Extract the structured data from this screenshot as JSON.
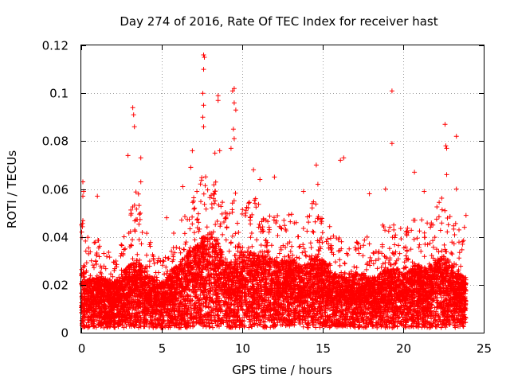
{
  "chart_data": {
    "type": "scatter",
    "title": "Day 274 of 2016, Rate Of TEC Index for receiver hast",
    "xlabel": "GPS time / hours",
    "ylabel": "ROTI / TECUs",
    "xlim": [
      0,
      25
    ],
    "ylim": [
      0,
      0.12
    ],
    "xticks": [
      0,
      5,
      10,
      15,
      20,
      25
    ],
    "xtick_labels": [
      "0",
      "5",
      "10",
      "15",
      "20",
      "25"
    ],
    "yticks": [
      0,
      0.02,
      0.04,
      0.06,
      0.08,
      0.1,
      0.12
    ],
    "ytick_labels": [
      "0",
      "0.02",
      "0.04",
      "0.06",
      "0.08",
      "0.1",
      "0.12"
    ],
    "grid": true,
    "marker": "+",
    "color": "#ff0000",
    "series": [
      {
        "name": "ROTI",
        "highlight_points": [
          {
            "x": 3.2,
            "y": 0.094
          },
          {
            "x": 3.25,
            "y": 0.091
          },
          {
            "x": 3.3,
            "y": 0.086
          },
          {
            "x": 2.9,
            "y": 0.074
          },
          {
            "x": 3.7,
            "y": 0.073
          },
          {
            "x": 3.7,
            "y": 0.063
          },
          {
            "x": 6.3,
            "y": 0.061
          },
          {
            "x": 7.6,
            "y": 0.116
          },
          {
            "x": 7.65,
            "y": 0.115
          },
          {
            "x": 7.6,
            "y": 0.11
          },
          {
            "x": 7.55,
            "y": 0.1
          },
          {
            "x": 7.6,
            "y": 0.095
          },
          {
            "x": 7.55,
            "y": 0.09
          },
          {
            "x": 7.6,
            "y": 0.086
          },
          {
            "x": 8.5,
            "y": 0.099
          },
          {
            "x": 8.5,
            "y": 0.097
          },
          {
            "x": 9.5,
            "y": 0.102
          },
          {
            "x": 9.4,
            "y": 0.101
          },
          {
            "x": 9.5,
            "y": 0.096
          },
          {
            "x": 9.6,
            "y": 0.093
          },
          {
            "x": 9.45,
            "y": 0.085
          },
          {
            "x": 9.5,
            "y": 0.081
          },
          {
            "x": 8.3,
            "y": 0.075
          },
          {
            "x": 8.6,
            "y": 0.076
          },
          {
            "x": 6.9,
            "y": 0.076
          },
          {
            "x": 6.8,
            "y": 0.069
          },
          {
            "x": 9.3,
            "y": 0.077
          },
          {
            "x": 14.6,
            "y": 0.07
          },
          {
            "x": 14.7,
            "y": 0.062
          },
          {
            "x": 16.1,
            "y": 0.072
          },
          {
            "x": 16.3,
            "y": 0.073
          },
          {
            "x": 19.3,
            "y": 0.101
          },
          {
            "x": 19.3,
            "y": 0.079
          },
          {
            "x": 22.6,
            "y": 0.087
          },
          {
            "x": 22.65,
            "y": 0.078
          },
          {
            "x": 22.7,
            "y": 0.077
          },
          {
            "x": 23.3,
            "y": 0.082
          },
          {
            "x": 22.7,
            "y": 0.066
          },
          {
            "x": 20.7,
            "y": 0.067
          },
          {
            "x": 23.3,
            "y": 0.06
          },
          {
            "x": 18.9,
            "y": 0.06
          },
          {
            "x": 0.1,
            "y": 0.063
          },
          {
            "x": 0.15,
            "y": 0.059
          },
          {
            "x": 0.1,
            "y": 0.057
          },
          {
            "x": 1.0,
            "y": 0.057
          },
          {
            "x": 11.1,
            "y": 0.064
          },
          {
            "x": 12.0,
            "y": 0.065
          },
          {
            "x": 13.8,
            "y": 0.059
          },
          {
            "x": 17.9,
            "y": 0.058
          },
          {
            "x": 21.3,
            "y": 0.059
          },
          {
            "x": 23.8,
            "y": 0.044
          },
          {
            "x": 23.9,
            "y": 0.049
          },
          {
            "x": 5.3,
            "y": 0.048
          },
          {
            "x": 10.7,
            "y": 0.068
          }
        ],
        "envelope": {
          "hours": [
            0,
            0.5,
            1,
            1.5,
            2,
            2.5,
            3,
            3.5,
            4,
            4.5,
            5,
            5.5,
            6,
            6.5,
            7,
            7.5,
            8,
            8.5,
            9,
            9.5,
            10,
            10.5,
            11,
            11.5,
            12,
            12.5,
            13,
            13.5,
            14,
            14.5,
            15,
            15.5,
            16,
            16.5,
            17,
            17.5,
            18,
            18.5,
            19,
            19.5,
            20,
            20.5,
            21,
            21.5,
            22,
            22.5,
            23,
            23.5,
            23.9
          ],
          "peak": [
            0.05,
            0.044,
            0.04,
            0.036,
            0.032,
            0.04,
            0.054,
            0.06,
            0.046,
            0.036,
            0.03,
            0.038,
            0.046,
            0.05,
            0.058,
            0.066,
            0.07,
            0.06,
            0.052,
            0.06,
            0.056,
            0.058,
            0.056,
            0.052,
            0.05,
            0.048,
            0.05,
            0.048,
            0.05,
            0.056,
            0.054,
            0.044,
            0.04,
            0.034,
            0.038,
            0.042,
            0.04,
            0.044,
            0.046,
            0.048,
            0.042,
            0.046,
            0.05,
            0.046,
            0.052,
            0.058,
            0.05,
            0.044,
            0.04
          ],
          "typical": [
            0.014,
            0.012,
            0.012,
            0.012,
            0.011,
            0.013,
            0.015,
            0.016,
            0.013,
            0.012,
            0.011,
            0.013,
            0.015,
            0.017,
            0.019,
            0.021,
            0.022,
            0.02,
            0.015,
            0.016,
            0.018,
            0.018,
            0.017,
            0.017,
            0.016,
            0.016,
            0.016,
            0.015,
            0.015,
            0.017,
            0.016,
            0.014,
            0.013,
            0.012,
            0.013,
            0.013,
            0.012,
            0.013,
            0.014,
            0.014,
            0.013,
            0.014,
            0.015,
            0.014,
            0.016,
            0.017,
            0.015,
            0.013,
            0.012
          ],
          "floor": 0.002
        }
      }
    ]
  }
}
